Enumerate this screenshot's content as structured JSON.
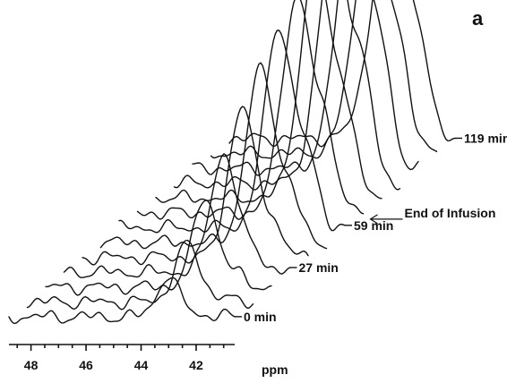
{
  "panel_label": "a",
  "colors": {
    "ink": "#111111",
    "background": "#ffffff"
  },
  "chart_data": {
    "type": "line",
    "subtype": "stacked-3d-spectra",
    "xlabel": "ppm",
    "xlim": [
      48.8,
      40.6
    ],
    "x_ticks": [
      48,
      46,
      44,
      42
    ],
    "x_reversed": true,
    "peak_ppm": 43.0,
    "series_count": 13,
    "stack_labels": [
      {
        "text": "0 min",
        "series_index": 0
      },
      {
        "text": "27 min",
        "series_index": 3
      },
      {
        "text": "59 min",
        "series_index": 6
      },
      {
        "text": "119 min",
        "series_index": 12
      }
    ],
    "annotation": {
      "text": "End of Infusion",
      "series_index": 7,
      "arrow": true
    },
    "series": [
      {
        "time_label": "0 min",
        "peak_height": 0.16
      },
      {
        "peak_height": 0.24
      },
      {
        "peak_height": 0.36
      },
      {
        "time_label": "27 min",
        "peak_height": 0.48
      },
      {
        "peak_height": 0.61
      },
      {
        "peak_height": 0.71
      },
      {
        "time_label": "59 min",
        "peak_height": 0.81
      },
      {
        "peak_height": 0.88
      },
      {
        "peak_height": 0.94
      },
      {
        "peak_height": 0.98
      },
      {
        "peak_height": 1.0
      },
      {
        "peak_height": 0.92
      },
      {
        "time_label": "119 min",
        "peak_height": 0.9
      }
    ]
  }
}
